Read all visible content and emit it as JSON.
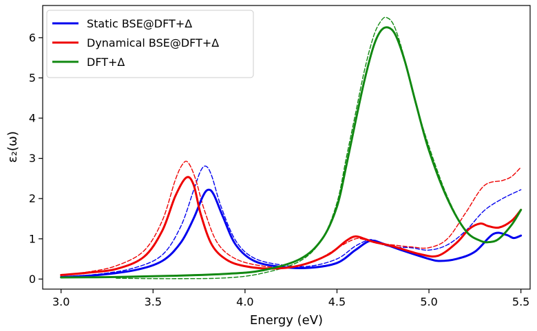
{
  "chart_data": {
    "type": "line",
    "xlabel": "Energy (eV)",
    "ylabel": "ε₂(ω)",
    "xlim": [
      2.9,
      5.55
    ],
    "ylim": [
      -0.25,
      6.8
    ],
    "xticks": [
      3.0,
      3.5,
      4.0,
      4.5,
      5.0,
      5.5
    ],
    "xtick_labels": [
      "3.0",
      "3.5",
      "4.0",
      "4.5",
      "5.0",
      "5.5"
    ],
    "yticks": [
      0,
      1,
      2,
      3,
      4,
      5,
      6
    ],
    "ytick_labels": [
      "0",
      "1",
      "2",
      "3",
      "4",
      "5",
      "6"
    ],
    "grid": false,
    "legend_position": "top-left",
    "series": [
      {
        "name": "Static BSE@DFT+Δ",
        "color": "#0000ee",
        "style": "solid",
        "x": [
          3.0,
          3.2,
          3.4,
          3.55,
          3.65,
          3.72,
          3.77,
          3.8,
          3.83,
          3.88,
          3.95,
          4.05,
          4.2,
          4.35,
          4.5,
          4.6,
          4.68,
          4.75,
          4.85,
          5.0,
          5.06,
          5.15,
          5.25,
          5.35,
          5.42,
          5.46,
          5.5
        ],
        "y": [
          0.05,
          0.1,
          0.22,
          0.45,
          0.9,
          1.5,
          2.05,
          2.22,
          2.1,
          1.55,
          0.85,
          0.45,
          0.3,
          0.28,
          0.4,
          0.72,
          0.95,
          0.88,
          0.72,
          0.5,
          0.45,
          0.5,
          0.68,
          1.12,
          1.1,
          1.02,
          1.08
        ]
      },
      {
        "name": "Dynamical BSE@DFT+Δ",
        "color": "#ee0000",
        "style": "solid",
        "x": [
          3.0,
          3.15,
          3.3,
          3.45,
          3.55,
          3.62,
          3.68,
          3.72,
          3.76,
          3.82,
          3.9,
          4.0,
          4.15,
          4.3,
          4.45,
          4.55,
          4.6,
          4.65,
          4.7,
          4.8,
          4.95,
          5.05,
          5.15,
          5.22,
          5.28,
          5.32,
          5.38,
          5.45,
          5.5
        ],
        "y": [
          0.1,
          0.16,
          0.25,
          0.55,
          1.2,
          2.05,
          2.52,
          2.35,
          1.6,
          0.85,
          0.48,
          0.32,
          0.26,
          0.34,
          0.6,
          0.95,
          1.06,
          1.0,
          0.92,
          0.82,
          0.62,
          0.58,
          0.9,
          1.25,
          1.38,
          1.32,
          1.28,
          1.45,
          1.72
        ]
      },
      {
        "name": "DFT+Δ",
        "color": "#118811",
        "style": "solid",
        "x": [
          3.0,
          3.3,
          3.6,
          3.9,
          4.1,
          4.3,
          4.42,
          4.5,
          4.55,
          4.6,
          4.65,
          4.7,
          4.74,
          4.78,
          4.82,
          4.87,
          4.93,
          5.0,
          5.1,
          5.2,
          5.28,
          5.33,
          5.38,
          5.45,
          5.5
        ],
        "y": [
          0.04,
          0.05,
          0.08,
          0.13,
          0.22,
          0.5,
          1.0,
          1.8,
          2.8,
          3.9,
          4.95,
          5.8,
          6.18,
          6.25,
          6.05,
          5.4,
          4.35,
          3.2,
          2.0,
          1.2,
          0.95,
          0.92,
          1.0,
          1.35,
          1.72
        ]
      },
      {
        "name": "",
        "color": "#0000ee",
        "style": "dashed",
        "x": [
          3.0,
          3.2,
          3.4,
          3.55,
          3.65,
          3.72,
          3.76,
          3.79,
          3.82,
          3.87,
          3.95,
          4.05,
          4.2,
          4.35,
          4.5,
          4.6,
          4.68,
          4.72,
          4.8,
          4.9,
          5.0,
          5.1,
          5.2,
          5.3,
          5.4,
          5.5
        ],
        "y": [
          0.06,
          0.12,
          0.28,
          0.6,
          1.3,
          2.2,
          2.7,
          2.8,
          2.55,
          1.8,
          0.95,
          0.52,
          0.35,
          0.32,
          0.5,
          0.82,
          0.98,
          0.9,
          0.8,
          0.78,
          0.72,
          0.85,
          1.2,
          1.7,
          2.0,
          2.22
        ]
      },
      {
        "name": "",
        "color": "#ee0000",
        "style": "dashed",
        "x": [
          3.0,
          3.15,
          3.3,
          3.45,
          3.55,
          3.62,
          3.66,
          3.69,
          3.73,
          3.78,
          3.85,
          3.95,
          4.1,
          4.25,
          4.4,
          4.52,
          4.6,
          4.65,
          4.72,
          4.8,
          4.9,
          5.0,
          5.1,
          5.2,
          5.3,
          5.4,
          5.45,
          5.5
        ],
        "y": [
          0.1,
          0.18,
          0.33,
          0.7,
          1.45,
          2.45,
          2.85,
          2.9,
          2.5,
          1.7,
          0.9,
          0.5,
          0.32,
          0.3,
          0.5,
          0.82,
          1.0,
          0.98,
          0.9,
          0.85,
          0.8,
          0.78,
          1.0,
          1.65,
          2.32,
          2.45,
          2.55,
          2.78
        ]
      },
      {
        "name": "",
        "color": "#118811",
        "style": "dashed",
        "x": [
          3.3,
          3.6,
          3.9,
          4.1,
          4.3,
          4.42,
          4.5,
          4.55,
          4.6,
          4.65,
          4.7,
          4.74,
          4.77,
          4.81,
          4.86,
          4.92,
          5.0,
          5.1,
          5.2,
          5.28,
          5.33,
          5.38,
          5.45,
          5.5
        ],
        "y": [
          0.02,
          0.01,
          0.03,
          0.15,
          0.45,
          1.0,
          1.9,
          3.0,
          4.1,
          5.2,
          6.05,
          6.42,
          6.5,
          6.3,
          5.6,
          4.5,
          3.3,
          2.05,
          1.2,
          0.95,
          0.92,
          1.0,
          1.35,
          1.72
        ]
      }
    ]
  }
}
